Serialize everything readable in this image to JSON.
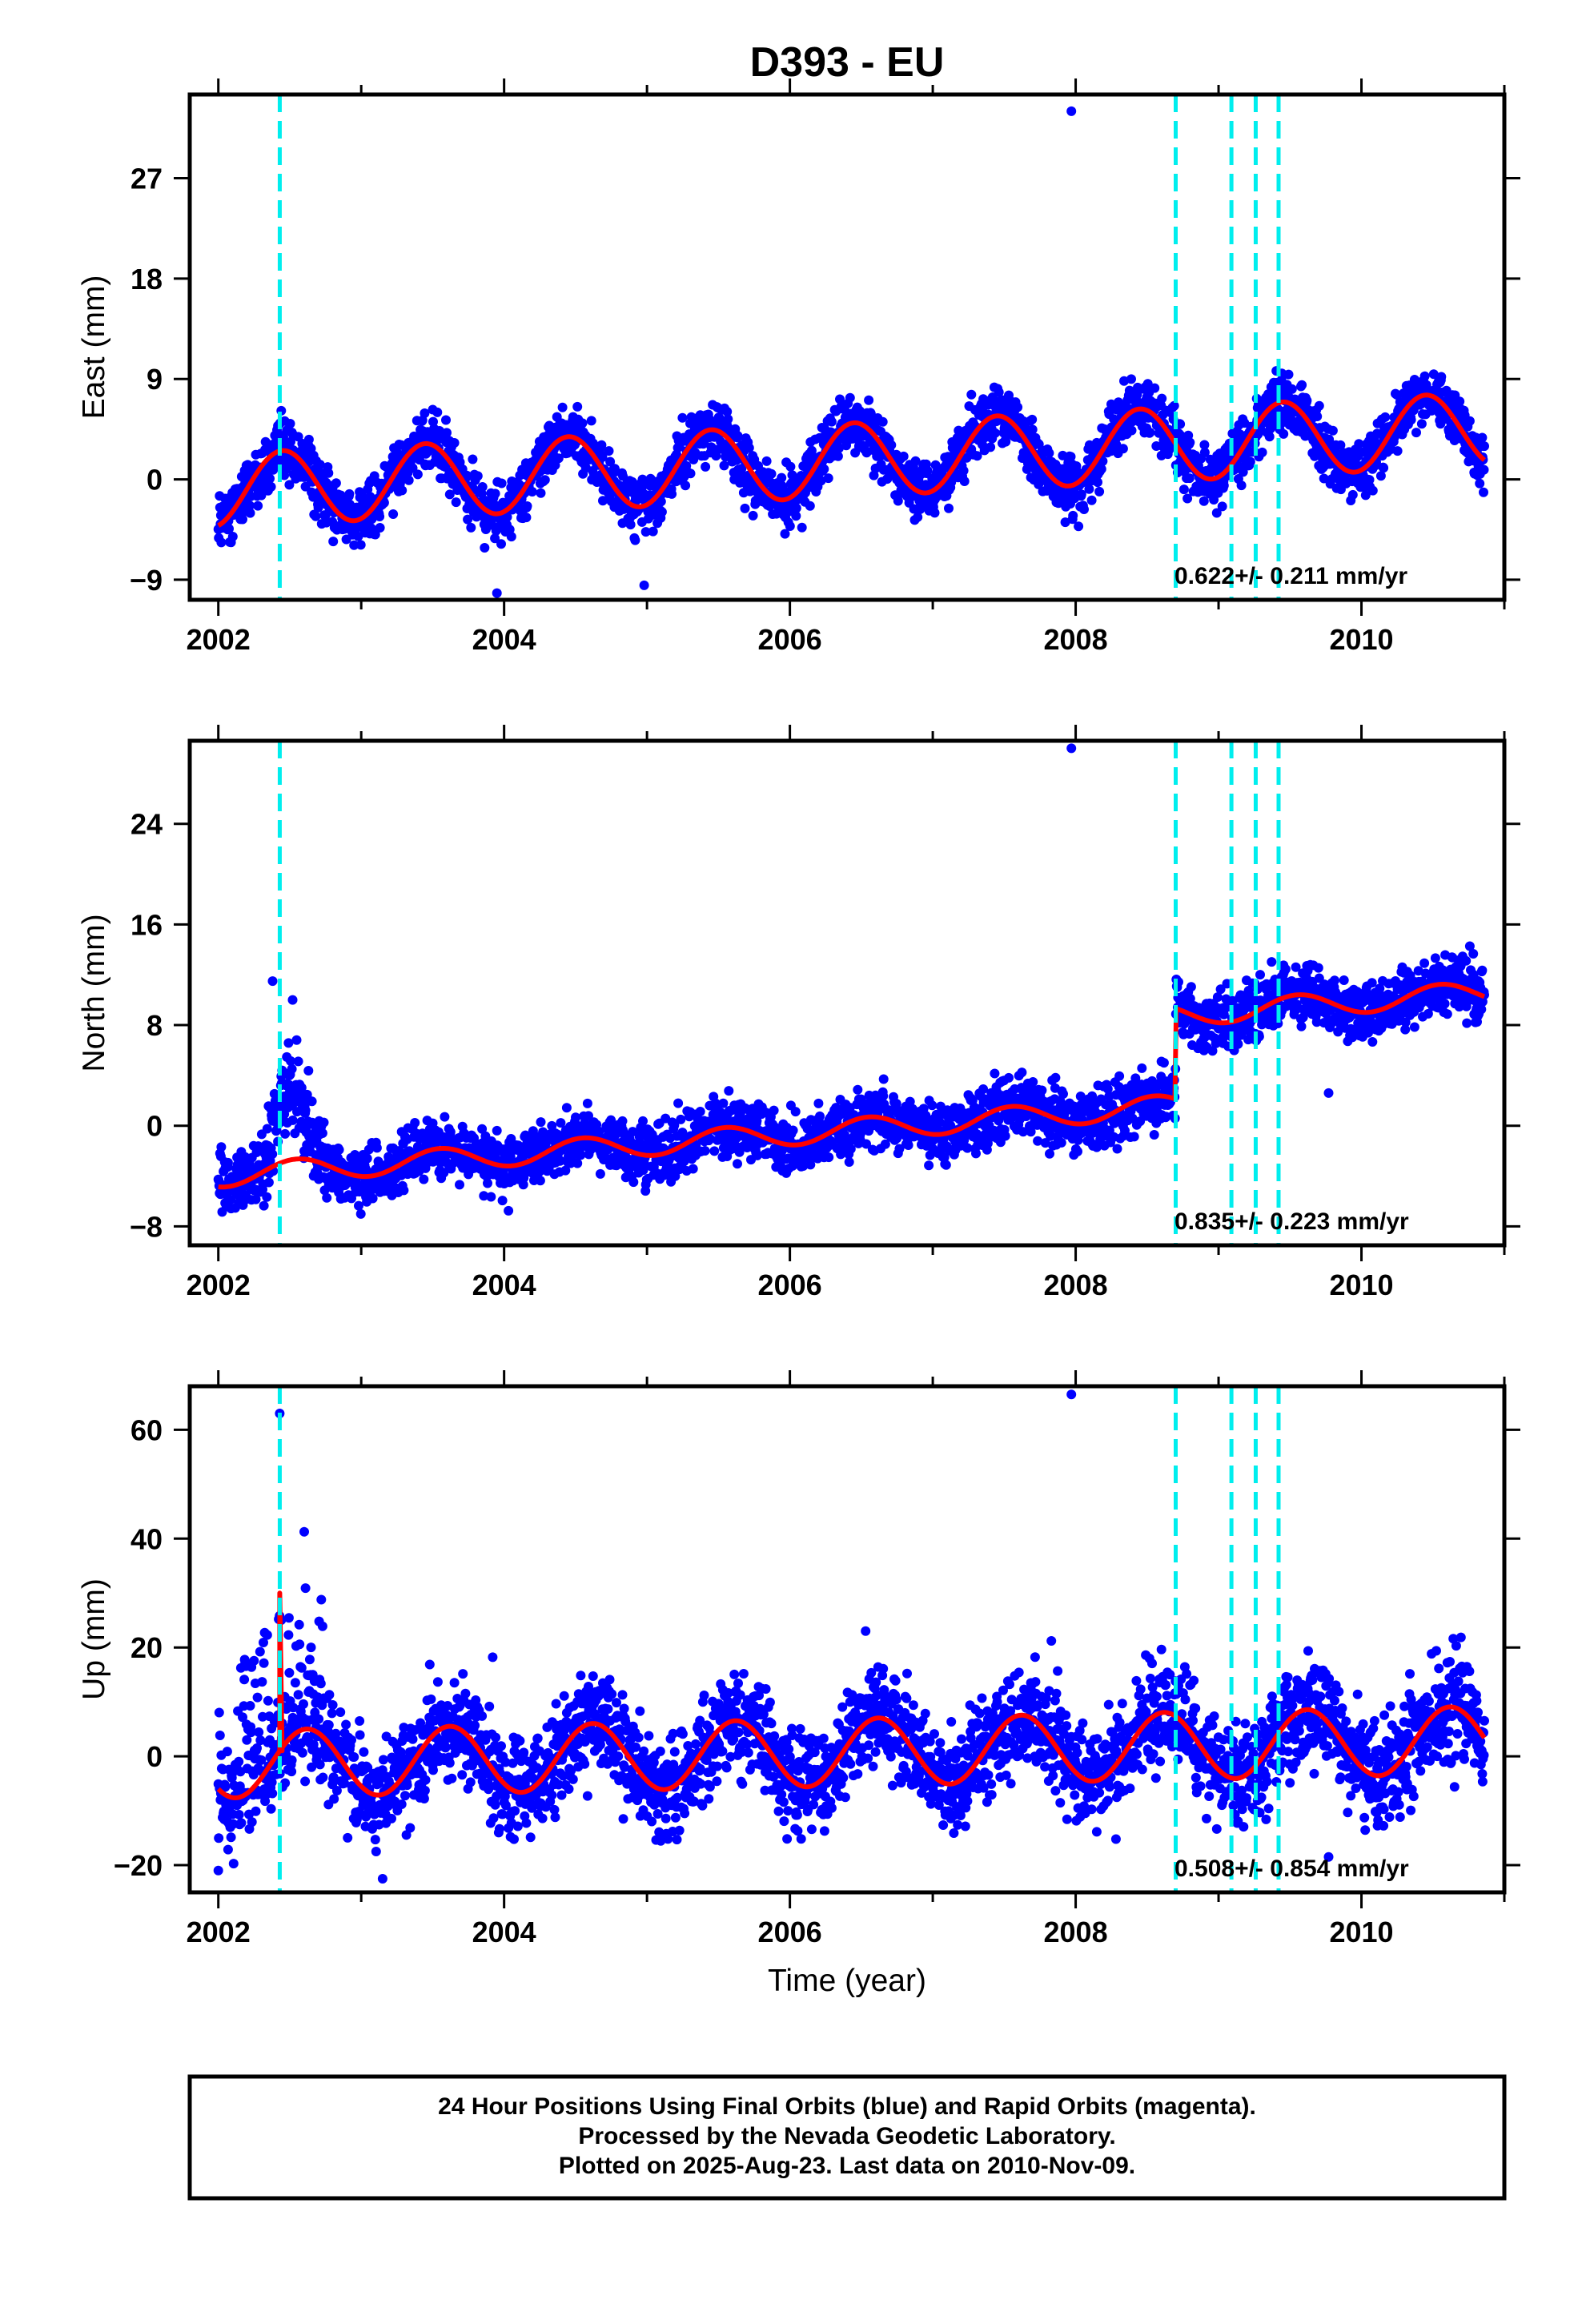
{
  "title": "D393 - EU",
  "xlabel": "Time (year)",
  "footer": {
    "line1": "24 Hour Positions Using Final Orbits (blue) and Rapid Orbits (magenta).",
    "line2": "Processed by the Nevada Geodetic Laboratory.",
    "line3": "Plotted on 2025-Aug-23. Last data on 2010-Nov-09."
  },
  "colors": {
    "data": "#0000ff",
    "model": "#ff0000",
    "events": "#00eeee",
    "frame": "#000000"
  },
  "chart_data": [
    {
      "type": "scatter",
      "panel": "east",
      "ylabel": "East (mm)",
      "xlim": [
        2001.8,
        2011.0
      ],
      "ylim": [
        -10.8,
        34.5
      ],
      "x_ticks": [
        "2002",
        "2004",
        "2006",
        "2008",
        "2010"
      ],
      "y_ticks": [
        "−9",
        "0",
        "9",
        "18",
        "27"
      ],
      "y_tick_values": [
        -9,
        0,
        9,
        18,
        27
      ],
      "rate_label": "0.622+/- 0.211 mm/yr",
      "data_range": [
        2002.0,
        2010.86
      ],
      "event_lines": [
        2002.43,
        2008.7,
        2009.09,
        2009.26,
        2009.42
      ],
      "model": {
        "offset0": -1.0,
        "rate": 0.622,
        "amp": 3.3,
        "peak_phase": 0.45,
        "steps": []
      },
      "noise_sd": 1.25,
      "outliers": [
        [
          2007.97,
          33.0
        ],
        [
          2004.98,
          -9.5
        ],
        [
          2003.95,
          -10.2
        ],
        [
          2007.27,
          7.6
        ],
        [
          2009.49,
          9.4
        ]
      ]
    },
    {
      "type": "scatter",
      "panel": "north",
      "ylabel": "North (mm)",
      "xlim": [
        2001.8,
        2011.0
      ],
      "ylim": [
        -9.5,
        30.6
      ],
      "x_ticks": [
        "2002",
        "2004",
        "2006",
        "2008",
        "2010"
      ],
      "y_ticks": [
        "−8",
        "0",
        "8",
        "16",
        "24"
      ],
      "y_tick_values": [
        -8,
        0,
        8,
        16,
        24
      ],
      "rate_label": "0.835+/- 0.223 mm/yr",
      "data_range": [
        2002.0,
        2010.86
      ],
      "event_lines": [
        2002.43,
        2008.7,
        2009.09,
        2009.26,
        2009.42
      ],
      "model": {
        "offset0": -4.0,
        "rate": 0.835,
        "amp": 0.9,
        "peak_phase": 0.55,
        "steps": [
          [
            2008.7,
            7.2
          ]
        ]
      },
      "noise_sd": 1.15,
      "outliers": [
        [
          2007.97,
          30.0
        ],
        [
          2009.77,
          2.6
        ],
        [
          2002.38,
          11.5
        ],
        [
          2002.52,
          10.0
        ]
      ],
      "transient": {
        "start": 2002.3,
        "end": 2002.78,
        "peak": 2002.47,
        "height": 7.5
      }
    },
    {
      "type": "scatter",
      "panel": "up",
      "ylabel": "Up (mm)",
      "xlim": [
        2001.8,
        2011.0
      ],
      "ylim": [
        -25,
        68
      ],
      "x_ticks": [
        "2002",
        "2004",
        "2006",
        "2008",
        "2010"
      ],
      "y_ticks": [
        "−20",
        "0",
        "20",
        "40",
        "60"
      ],
      "y_tick_values": [
        -20,
        0,
        20,
        40,
        60
      ],
      "rate_label": "0.508+/- 0.854 mm/yr",
      "data_range": [
        2002.0,
        2010.86
      ],
      "event_lines": [
        2002.43,
        2008.7,
        2009.09,
        2009.26,
        2009.42
      ],
      "model": {
        "offset0": -1.5,
        "rate": 0.508,
        "amp": 6.2,
        "peak_phase": 0.62,
        "steps": []
      },
      "noise_sd": 4.6,
      "outliers": [
        [
          2002.43,
          63.0
        ],
        [
          2007.97,
          66.5
        ],
        [
          2006.53,
          23.0
        ],
        [
          2007.83,
          21.2
        ],
        [
          2003.92,
          18.2
        ],
        [
          2009.77,
          -18.5
        ],
        [
          2002.0,
          -21.0
        ],
        [
          2003.15,
          -22.5
        ]
      ],
      "spike": {
        "x": 2002.43,
        "top": 30.0
      }
    }
  ]
}
